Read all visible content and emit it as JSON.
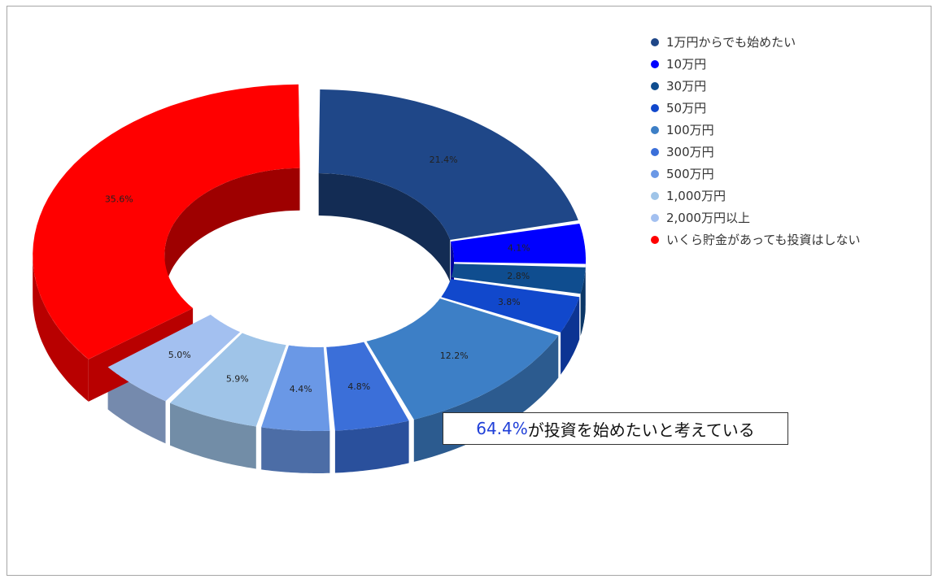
{
  "chart_data": {
    "type": "pie",
    "subtype": "3d-donut",
    "legend_position": "right",
    "categories": [
      "1万円からでも始めたい",
      "10万円",
      "30万円",
      "50万円",
      "100万円",
      "300万円",
      "500万円",
      "1,000万円",
      "2,000万円以上",
      "いくら貯金があっても投資はしない"
    ],
    "values": [
      21.4,
      4.1,
      2.8,
      3.8,
      12.2,
      4.8,
      4.4,
      5.9,
      5.0,
      35.6
    ],
    "labels": [
      "21.4%",
      "4.1%",
      "2.8%",
      "3.8%",
      "12.2%",
      "4.8%",
      "4.4%",
      "5.9%",
      "5.0%",
      "35.6%"
    ],
    "colors": [
      "#1f4788",
      "#0000ff",
      "#0f4d8f",
      "#1148cc",
      "#3d7fc6",
      "#3b6fd9",
      "#6a98e6",
      "#9fc4e8",
      "#a3c0f0",
      "#ff0000"
    ],
    "annotation": {
      "highlight": "64.4%",
      "text": "が投資を始めたいと考えている"
    }
  }
}
